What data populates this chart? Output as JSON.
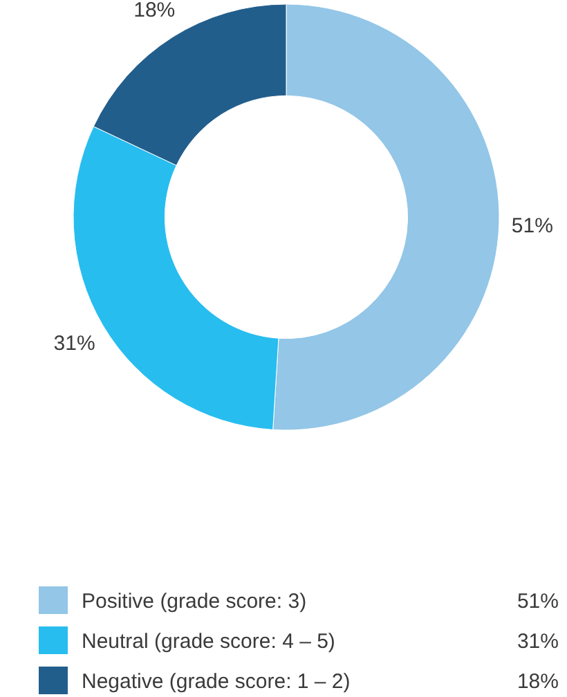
{
  "chart_data": {
    "type": "donut",
    "categories": [
      "Positive (grade score: 3)",
      "Neutral (grade score: 4 – 5)",
      "Negative (grade score: 1 – 2)"
    ],
    "values": [
      51,
      31,
      18
    ],
    "colors": [
      "#93c6e7",
      "#27bdef",
      "#225e8c"
    ],
    "value_labels": [
      "51%",
      "31%",
      "18%"
    ],
    "legend": "bottom"
  }
}
